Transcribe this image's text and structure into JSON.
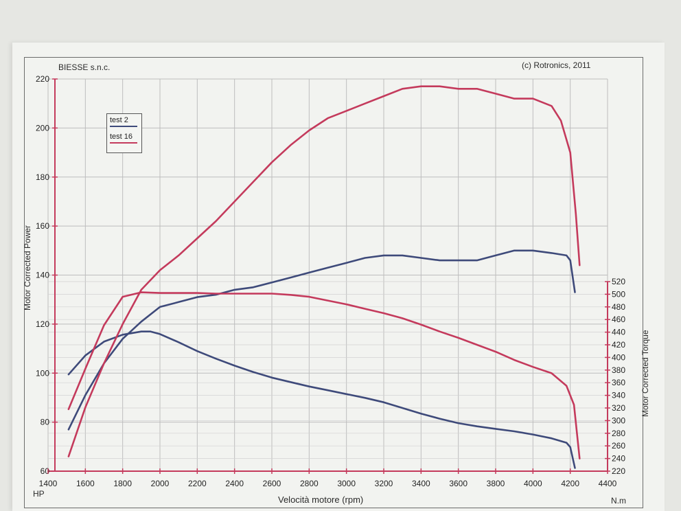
{
  "header": {
    "company": "BIESSE s.n.c.",
    "copyright": "(c) Rotronics, 2011"
  },
  "colors": {
    "test2": "#3e4a7a",
    "test16": "#c43a5c",
    "grid": "#bdbdbd",
    "axis": "#c43a5c"
  },
  "chart_data": {
    "type": "line",
    "xlabel": "Velocità motore (rpm)",
    "ylabel_left": "Motor Corrected Power",
    "ylabel_right": "Motor Corrected Torque",
    "left_unit": "HP",
    "right_unit": "N.m",
    "xlim": [
      1400,
      4400
    ],
    "ylim_left": [
      60,
      220
    ],
    "ylim_right": [
      220,
      520
    ],
    "x_ticks": [
      1400,
      1600,
      1800,
      2000,
      2200,
      2400,
      2600,
      2800,
      3000,
      3200,
      3400,
      3600,
      3800,
      4000,
      4200,
      4400
    ],
    "y_left_ticks": [
      60,
      80,
      100,
      120,
      140,
      160,
      180,
      200,
      220
    ],
    "y_right_ticks": [
      220,
      240,
      260,
      280,
      300,
      320,
      340,
      360,
      380,
      400,
      420,
      440,
      460,
      480,
      500,
      520
    ],
    "legend": [
      {
        "name": "test 2",
        "color": "#3e4a7a"
      },
      {
        "name": "test 16",
        "color": "#c43a5c"
      }
    ],
    "series": [
      {
        "name": "test 2",
        "quantity": "power",
        "axis": "left",
        "x": [
          1510,
          1600,
          1700,
          1800,
          1900,
          2000,
          2100,
          2200,
          2300,
          2400,
          2500,
          2600,
          2700,
          2800,
          2900,
          3000,
          3100,
          3200,
          3300,
          3400,
          3500,
          3600,
          3700,
          3800,
          3900,
          4000,
          4100,
          4180,
          4200,
          4225
        ],
        "y": [
          77,
          91,
          104,
          114,
          121,
          127,
          129,
          131,
          132,
          134,
          135,
          137,
          139,
          141,
          143,
          145,
          147,
          148,
          148,
          147,
          146,
          146,
          146,
          148,
          150,
          150,
          149,
          148,
          146,
          133
        ]
      },
      {
        "name": "test 2",
        "quantity": "torque",
        "axis": "right",
        "x": [
          1510,
          1600,
          1700,
          1800,
          1900,
          1950,
          2000,
          2100,
          2200,
          2300,
          2400,
          2500,
          2600,
          2700,
          2800,
          2900,
          3000,
          3100,
          3200,
          3300,
          3400,
          3500,
          3600,
          3700,
          3800,
          3900,
          4000,
          4100,
          4180,
          4200,
          4225
        ],
        "y": [
          373,
          403,
          425,
          436,
          441,
          441,
          437,
          424,
          410,
          398,
          387,
          377,
          368,
          361,
          354,
          348,
          342,
          336,
          329,
          320,
          311,
          303,
          296,
          291,
          287,
          283,
          278,
          272,
          265,
          258,
          225
        ]
      },
      {
        "name": "test 16",
        "quantity": "power",
        "axis": "left",
        "x": [
          1510,
          1600,
          1700,
          1800,
          1900,
          2000,
          2100,
          2200,
          2300,
          2400,
          2500,
          2600,
          2700,
          2800,
          2900,
          3000,
          3100,
          3200,
          3300,
          3400,
          3500,
          3600,
          3700,
          3800,
          3900,
          4000,
          4100,
          4150,
          4200,
          4230,
          4250
        ],
        "y": [
          66,
          86,
          104,
          120,
          134,
          142,
          148,
          155,
          162,
          170,
          178,
          186,
          193,
          199,
          204,
          207,
          210,
          213,
          216,
          217,
          217,
          216,
          216,
          214,
          212,
          212,
          209,
          203,
          190,
          165,
          144
        ]
      },
      {
        "name": "test 16",
        "quantity": "torque",
        "axis": "right",
        "x": [
          1510,
          1600,
          1700,
          1800,
          1900,
          2000,
          2100,
          2200,
          2300,
          2400,
          2500,
          2600,
          2700,
          2800,
          2900,
          3000,
          3100,
          3200,
          3300,
          3400,
          3500,
          3600,
          3700,
          3800,
          3900,
          4000,
          4100,
          4180,
          4220,
          4250
        ],
        "y": [
          318,
          382,
          451,
          496,
          503,
          502,
          502,
          502,
          501,
          501,
          501,
          501,
          499,
          496,
          490,
          484,
          477,
          470,
          462,
          452,
          441,
          431,
          420,
          409,
          396,
          385,
          375,
          355,
          325,
          240
        ]
      }
    ]
  }
}
